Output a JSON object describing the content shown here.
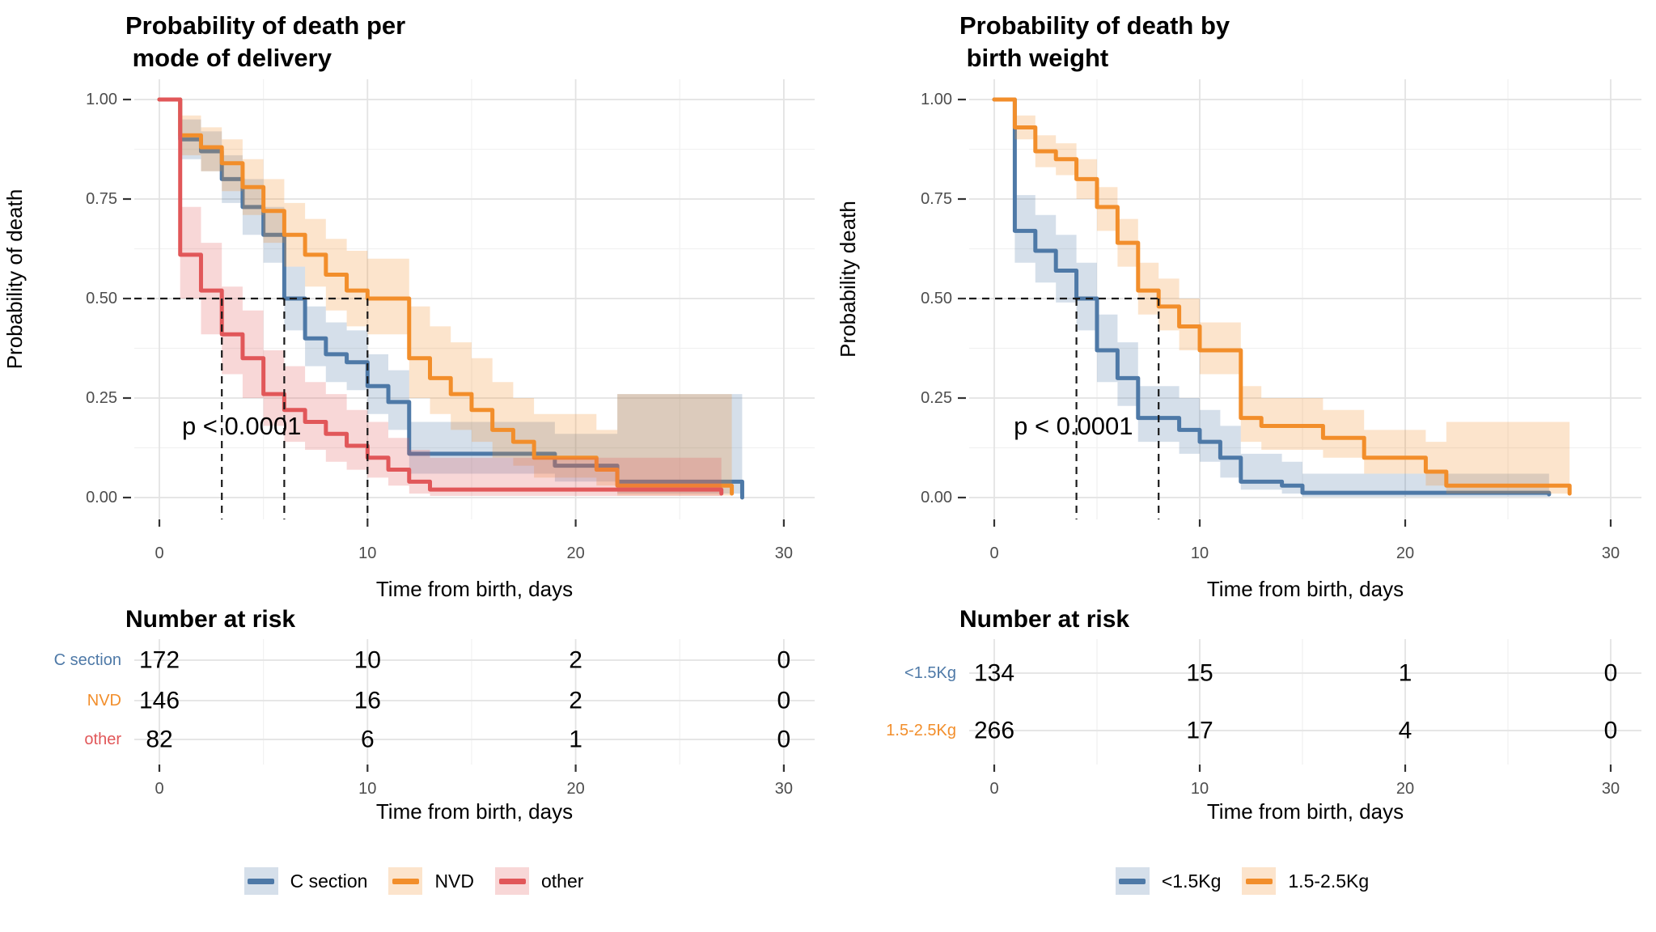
{
  "page": {
    "background": "#ffffff"
  },
  "chart_data": [
    {
      "type": "line",
      "subtype": "kaplan-meier-step",
      "title_lines": [
        "Probability of death per",
        " mode of delivery"
      ],
      "xlabel": "Time from birth, days",
      "ylabel": "Probability of death",
      "xlim": [
        0,
        30
      ],
      "ylim": [
        0,
        1
      ],
      "grid": true,
      "legend_position": "bottom",
      "xticks": [
        0,
        10,
        20,
        30
      ],
      "xtick_labels": [
        "0",
        "10",
        "20",
        "30"
      ],
      "yticks": [
        0,
        0.25,
        0.5,
        0.75,
        1
      ],
      "ytick_labels": [
        "0.00",
        "0.25",
        "0.50",
        "0.75",
        "1.00"
      ],
      "p_value": {
        "label": "p < 0.0001",
        "x": 3.95,
        "y": 0.18
      },
      "median_lines": {
        "y": 0.5,
        "times": [
          3,
          6,
          10
        ]
      },
      "series": [
        {
          "name": "C section",
          "color": "#4E79A7",
          "band_opacity": 0.24,
          "steps": [
            [
              0,
              1,
              1,
              1
            ],
            [
              1,
              0.9,
              0.85,
              0.95
            ],
            [
              2,
              0.87,
              0.82,
              0.92
            ],
            [
              3,
              0.8,
              0.74,
              0.86
            ],
            [
              4,
              0.73,
              0.66,
              0.8
            ],
            [
              5,
              0.66,
              0.59,
              0.73
            ],
            [
              6,
              0.5,
              0.42,
              0.58
            ],
            [
              7,
              0.4,
              0.33,
              0.48
            ],
            [
              8,
              0.36,
              0.29,
              0.44
            ],
            [
              9,
              0.34,
              0.27,
              0.42
            ],
            [
              10,
              0.28,
              0.21,
              0.36
            ],
            [
              11,
              0.24,
              0.17,
              0.32
            ],
            [
              12,
              0.11,
              0.06,
              0.19
            ],
            [
              19,
              0.08,
              0.04,
              0.16
            ],
            [
              22,
              0.04,
              0.01,
              0.26
            ],
            [
              28,
              0.0,
              0.0,
              0.26
            ]
          ]
        },
        {
          "name": "NVD",
          "color": "#F28E2B",
          "band_opacity": 0.24,
          "steps": [
            [
              0,
              1,
              1,
              1
            ],
            [
              1,
              0.91,
              0.86,
              0.96
            ],
            [
              2,
              0.88,
              0.82,
              0.93
            ],
            [
              3,
              0.84,
              0.77,
              0.9
            ],
            [
              4,
              0.78,
              0.71,
              0.85
            ],
            [
              5,
              0.72,
              0.64,
              0.8
            ],
            [
              6,
              0.66,
              0.58,
              0.74
            ],
            [
              7,
              0.61,
              0.53,
              0.7
            ],
            [
              8,
              0.56,
              0.47,
              0.65
            ],
            [
              9,
              0.52,
              0.43,
              0.62
            ],
            [
              10,
              0.5,
              0.41,
              0.6
            ],
            [
              12,
              0.35,
              0.25,
              0.48
            ],
            [
              13,
              0.3,
              0.21,
              0.43
            ],
            [
              14,
              0.26,
              0.17,
              0.39
            ],
            [
              15,
              0.22,
              0.14,
              0.35
            ],
            [
              16,
              0.17,
              0.1,
              0.29
            ],
            [
              17,
              0.14,
              0.08,
              0.25
            ],
            [
              18,
              0.1,
              0.05,
              0.21
            ],
            [
              21,
              0.07,
              0.03,
              0.17
            ],
            [
              22,
              0.03,
              0.005,
              0.26
            ],
            [
              27.5,
              0.01,
              0.0,
              0.25
            ]
          ]
        },
        {
          "name": "other",
          "color": "#E15759",
          "band_opacity": 0.24,
          "steps": [
            [
              0,
              1,
              1,
              1
            ],
            [
              1,
              0.61,
              0.5,
              0.73
            ],
            [
              2,
              0.52,
              0.41,
              0.64
            ],
            [
              3,
              0.41,
              0.31,
              0.53
            ],
            [
              4,
              0.35,
              0.25,
              0.47
            ],
            [
              5,
              0.26,
              0.18,
              0.37
            ],
            [
              6,
              0.22,
              0.14,
              0.33
            ],
            [
              7,
              0.19,
              0.12,
              0.29
            ],
            [
              8,
              0.16,
              0.09,
              0.26
            ],
            [
              9,
              0.13,
              0.07,
              0.22
            ],
            [
              10,
              0.1,
              0.05,
              0.19
            ],
            [
              11,
              0.07,
              0.03,
              0.15
            ],
            [
              12,
              0.04,
              0.01,
              0.12
            ],
            [
              13,
              0.02,
              0.004,
              0.1
            ],
            [
              27,
              0.01,
              0.0,
              0.09
            ]
          ]
        }
      ],
      "risk_table": {
        "title": "Number at risk",
        "times": [
          0,
          10,
          20,
          30
        ],
        "xlabel": "Time from birth, days",
        "rows": [
          {
            "label": "C section",
            "color": "#4E79A7",
            "values": [
              "172",
              "10",
              "2",
              "0"
            ]
          },
          {
            "label": "NVD",
            "color": "#F28E2B",
            "values": [
              "146",
              "16",
              "2",
              "0"
            ]
          },
          {
            "label": "other",
            "color": "#E15759",
            "values": [
              "82",
              "6",
              "1",
              "0"
            ]
          }
        ]
      },
      "legend": [
        {
          "label": "C section",
          "color": "#4E79A7"
        },
        {
          "label": "NVD",
          "color": "#F28E2B"
        },
        {
          "label": "other",
          "color": "#E15759"
        }
      ]
    },
    {
      "type": "line",
      "subtype": "kaplan-meier-step",
      "title_lines": [
        "Probability of death by",
        " birth weight"
      ],
      "xlabel": "Time from birth, days",
      "ylabel": "Probability death",
      "xlim": [
        0,
        30
      ],
      "ylim": [
        0,
        1
      ],
      "grid": true,
      "legend_position": "bottom",
      "xticks": [
        0,
        10,
        20,
        30
      ],
      "xtick_labels": [
        "0",
        "10",
        "20",
        "30"
      ],
      "yticks": [
        0,
        0.25,
        0.5,
        0.75,
        1
      ],
      "ytick_labels": [
        "0.00",
        "0.25",
        "0.50",
        "0.75",
        "1.00"
      ],
      "p_value": {
        "label": "p < 0.0001",
        "x": 3.85,
        "y": 0.18
      },
      "median_lines": {
        "y": 0.5,
        "times": [
          4,
          8
        ]
      },
      "series": [
        {
          "name": "<1.5Kg",
          "color": "#4E79A7",
          "band_opacity": 0.24,
          "steps": [
            [
              0,
              1,
              1,
              1
            ],
            [
              1,
              0.67,
              0.59,
              0.76
            ],
            [
              2,
              0.62,
              0.54,
              0.71
            ],
            [
              3,
              0.57,
              0.49,
              0.66
            ],
            [
              4,
              0.5,
              0.42,
              0.59
            ],
            [
              5,
              0.37,
              0.29,
              0.46
            ],
            [
              6,
              0.3,
              0.23,
              0.39
            ],
            [
              7,
              0.2,
              0.14,
              0.28
            ],
            [
              9,
              0.17,
              0.11,
              0.25
            ],
            [
              10,
              0.14,
              0.09,
              0.22
            ],
            [
              11,
              0.1,
              0.05,
              0.18
            ],
            [
              12,
              0.04,
              0.02,
              0.11
            ],
            [
              14,
              0.03,
              0.01,
              0.09
            ],
            [
              15,
              0.012,
              0.002,
              0.06
            ],
            [
              27,
              0.008,
              0.0,
              0.05
            ]
          ]
        },
        {
          "name": "1.5-2.5Kg",
          "color": "#F28E2B",
          "band_opacity": 0.24,
          "steps": [
            [
              0,
              1,
              1,
              1
            ],
            [
              1,
              0.93,
              0.9,
              0.96
            ],
            [
              2,
              0.87,
              0.83,
              0.91
            ],
            [
              3,
              0.85,
              0.81,
              0.89
            ],
            [
              4,
              0.8,
              0.75,
              0.85
            ],
            [
              5,
              0.73,
              0.67,
              0.78
            ],
            [
              6,
              0.64,
              0.58,
              0.7
            ],
            [
              7,
              0.52,
              0.46,
              0.59
            ],
            [
              8,
              0.48,
              0.42,
              0.55
            ],
            [
              9,
              0.43,
              0.37,
              0.5
            ],
            [
              10,
              0.37,
              0.31,
              0.44
            ],
            [
              12,
              0.2,
              0.14,
              0.28
            ],
            [
              13,
              0.18,
              0.12,
              0.25
            ],
            [
              16,
              0.15,
              0.1,
              0.22
            ],
            [
              18,
              0.1,
              0.06,
              0.17
            ],
            [
              21,
              0.065,
              0.03,
              0.14
            ],
            [
              22,
              0.03,
              0.01,
              0.19
            ],
            [
              28,
              0.01,
              0.0,
              0.18
            ]
          ]
        }
      ],
      "risk_table": {
        "title": "Number at risk",
        "times": [
          0,
          10,
          20,
          30
        ],
        "xlabel": "Time from birth, days",
        "rows": [
          {
            "label": "<1.5Kg",
            "color": "#4E79A7",
            "values": [
              "134",
              "15",
              "1",
              "0"
            ]
          },
          {
            "label": "1.5-2.5Kg",
            "color": "#F28E2B",
            "values": [
              "266",
              "17",
              "4",
              "0"
            ]
          }
        ]
      },
      "legend": [
        {
          "label": "<1.5Kg",
          "color": "#4E79A7"
        },
        {
          "label": "1.5-2.5Kg",
          "color": "#F28E2B"
        }
      ]
    }
  ]
}
